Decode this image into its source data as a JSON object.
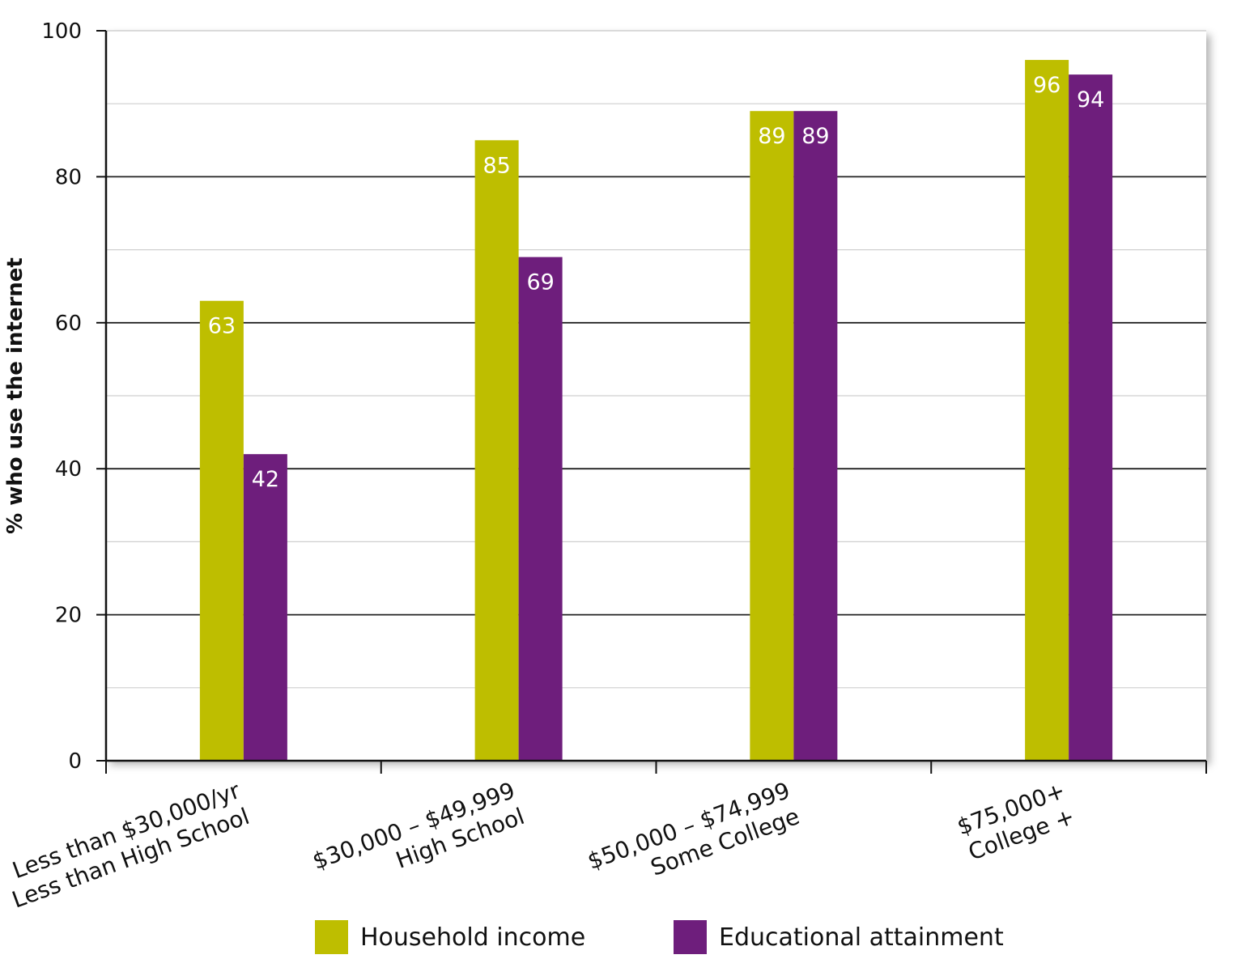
{
  "chart_data": {
    "type": "bar",
    "title": "",
    "xlabel": "",
    "ylabel": "% who use the internet",
    "ylim": [
      0,
      100
    ],
    "yticks": [
      0,
      20,
      40,
      60,
      80,
      100
    ],
    "grid": true,
    "legend_position": "bottom",
    "categories": [
      [
        "Less than $30,000/yr",
        "Less than High School"
      ],
      [
        "$30,000 – $49,999",
        "High School"
      ],
      [
        "$50,000 – $74,999",
        "Some College"
      ],
      [
        "$75,000+",
        "College +"
      ]
    ],
    "series": [
      {
        "name": "Household income",
        "color": "#bebe00",
        "values": [
          63,
          85,
          89,
          96
        ]
      },
      {
        "name": "Educational attainment",
        "color": "#6e1e7c",
        "values": [
          42,
          69,
          89,
          94
        ]
      }
    ]
  }
}
